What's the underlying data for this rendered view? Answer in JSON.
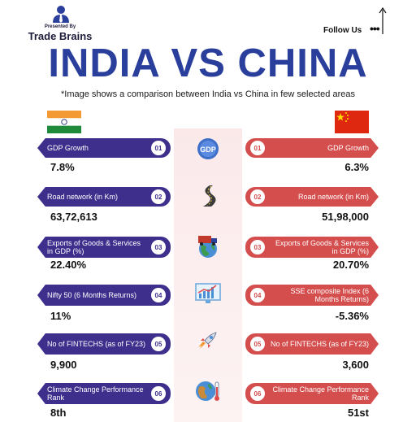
{
  "header": {
    "presented_by": "Presented By",
    "brand": "Trade Brains",
    "follow": "Follow Us",
    "follow_dots": "•••"
  },
  "title": "INDIA VS CHINA",
  "subtitle": "*Image shows a comparison between India vs China in few selected areas",
  "colors": {
    "india": "#3e2f8c",
    "china": "#d54e4e",
    "title": "#2a3f9c"
  },
  "rows": [
    {
      "num": "01",
      "india_label": "GDP Growth",
      "china_label": "GDP Growth",
      "india_value": "7.8%",
      "china_value": "6.3%",
      "icon": "gdp-icon",
      "icon_text": "GDP"
    },
    {
      "num": "02",
      "india_label": "Road network (in Km)",
      "china_label": "Road network (in Km)",
      "india_value": "63,72,613",
      "china_value": "51,98,000",
      "icon": "road-icon"
    },
    {
      "num": "03",
      "india_label": "Exports of Goods & Services in GDP (%)",
      "china_label": "Exports of Goods & Services in GDP (%)",
      "india_value": "22.40%",
      "china_value": "20.70%",
      "icon": "globe-truck-icon"
    },
    {
      "num": "04",
      "india_label": "Nifty 50 (6 Months Returns)",
      "china_label": "SSE composite Index (6 Months Returns)",
      "india_value": "11%",
      "china_value": "-5.36%",
      "icon": "stock-chart-icon"
    },
    {
      "num": "05",
      "india_label": "No of FINTECHS (as of FY23)",
      "china_label": "No of FINTECHS (as of FY23)",
      "india_value": "9,900",
      "china_value": "3,600",
      "icon": "rocket-icon"
    },
    {
      "num": "06",
      "india_label": "Climate Change Performance Rank",
      "china_label": "Climate Change Performance Rank",
      "india_value": "8th",
      "china_value": "51st",
      "icon": "globe-thermometer-icon"
    }
  ]
}
